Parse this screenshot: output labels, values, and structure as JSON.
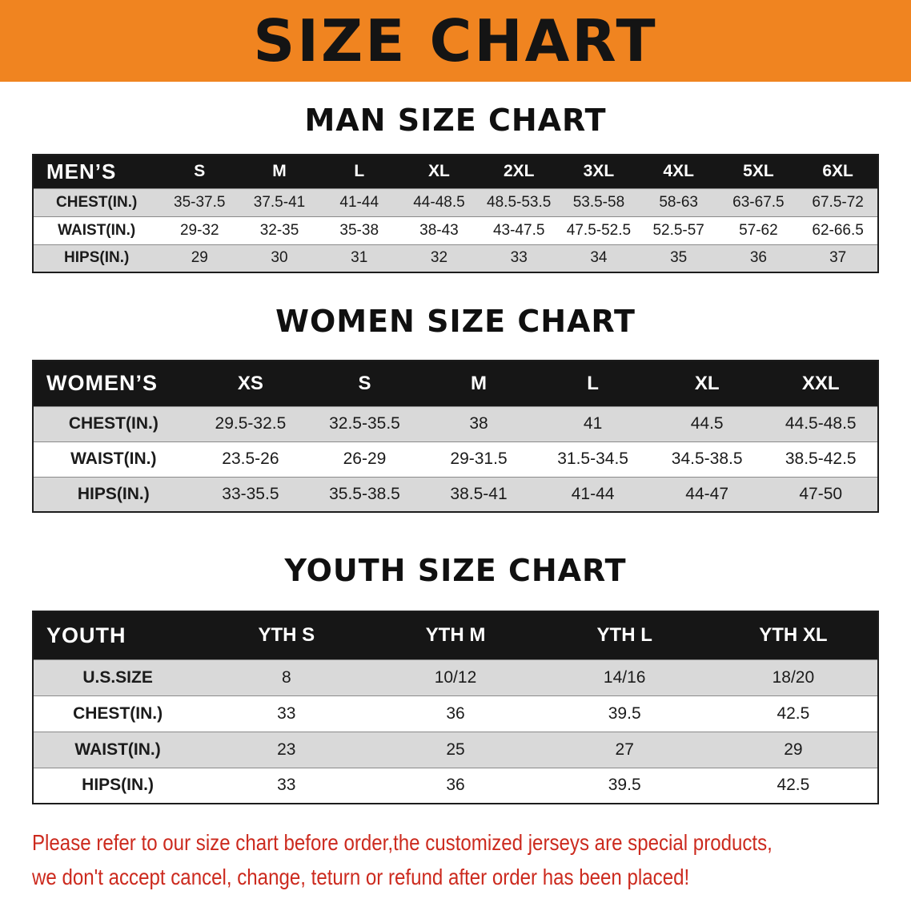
{
  "banner": {
    "title": "SIZE CHART"
  },
  "colors": {
    "banner-bg": "#f08420",
    "header-bg": "#161616",
    "stripe": "#d9d9d9",
    "footnote-red": "#cc2a1e"
  },
  "sections": [
    {
      "id": "men",
      "heading": "MAN SIZE CHART",
      "table": {
        "header": [
          "MEN’S",
          "S",
          "M",
          "L",
          "XL",
          "2XL",
          "3XL",
          "4XL",
          "5XL",
          "6XL"
        ],
        "rows": [
          [
            "CHEST(IN.)",
            "35-37.5",
            "37.5-41",
            "41-44",
            "44-48.5",
            "48.5-53.5",
            "53.5-58",
            "58-63",
            "63-67.5",
            "67.5-72"
          ],
          [
            "WAIST(IN.)",
            "29-32",
            "32-35",
            "35-38",
            "38-43",
            "43-47.5",
            "47.5-52.5",
            "52.5-57",
            "57-62",
            "62-66.5"
          ],
          [
            "HIPS(IN.)",
            "29",
            "30",
            "31",
            "32",
            "33",
            "34",
            "35",
            "36",
            "37"
          ]
        ]
      }
    },
    {
      "id": "women",
      "heading": "WOMEN SIZE CHART",
      "table": {
        "header": [
          "WOMEN’S",
          "XS",
          "S",
          "M",
          "L",
          "XL",
          "XXL"
        ],
        "rows": [
          [
            "CHEST(IN.)",
            "29.5-32.5",
            "32.5-35.5",
            "38",
            "41",
            "44.5",
            "44.5-48.5"
          ],
          [
            "WAIST(IN.)",
            "23.5-26",
            "26-29",
            "29-31.5",
            "31.5-34.5",
            "34.5-38.5",
            "38.5-42.5"
          ],
          [
            "HIPS(IN.)",
            "33-35.5",
            "35.5-38.5",
            "38.5-41",
            "41-44",
            "44-47",
            "47-50"
          ]
        ]
      }
    },
    {
      "id": "youth",
      "heading": "YOUTH SIZE CHART",
      "table": {
        "header": [
          "YOUTH",
          "YTH S",
          "YTH M",
          "YTH L",
          "YTH XL"
        ],
        "rows": [
          [
            "U.S.SIZE",
            "8",
            "10/12",
            "14/16",
            "18/20"
          ],
          [
            "CHEST(IN.)",
            "33",
            "36",
            "39.5",
            "42.5"
          ],
          [
            "WAIST(IN.)",
            "23",
            "25",
            "27",
            "29"
          ],
          [
            "HIPS(IN.)",
            "33",
            "36",
            "39.5",
            "42.5"
          ]
        ]
      }
    }
  ],
  "footnote": {
    "line1": "Please refer to our size chart before order,the customized jerseys are special products,",
    "line2": "we don't accept cancel, change, teturn or refund after order has been placed!"
  }
}
